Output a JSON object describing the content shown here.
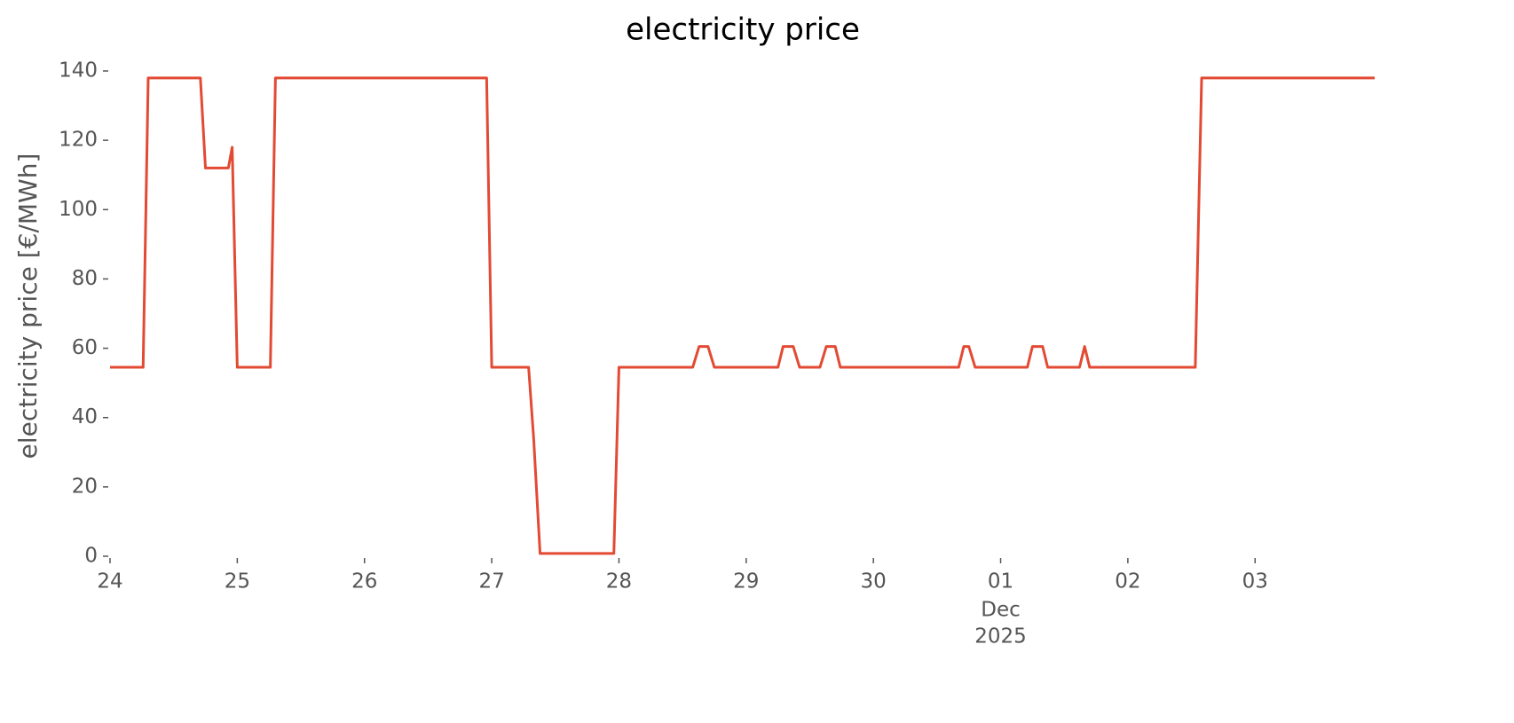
{
  "chart_data": {
    "type": "line",
    "title": "electricity price",
    "y_label": "electricity price [€/MWh]",
    "x": [
      0,
      0.26,
      0.3,
      0.71,
      0.75,
      0.93,
      0.96,
      1.0,
      1.26,
      1.3,
      2.96,
      3.0,
      3.29,
      3.33,
      3.38,
      3.96,
      4.0,
      4.58,
      4.63,
      4.7,
      4.75,
      5.25,
      5.29,
      5.37,
      5.42,
      5.58,
      5.63,
      5.7,
      5.74,
      6.67,
      6.71,
      6.75,
      6.8,
      7.21,
      7.25,
      7.33,
      7.37,
      7.62,
      7.66,
      7.7,
      8.53,
      8.58,
      9.94
    ],
    "values": [
      54.5,
      54.5,
      138,
      138,
      112,
      112,
      118,
      54.5,
      54.5,
      138,
      138,
      54.5,
      54.5,
      33.8,
      0.8,
      0.8,
      54.5,
      54.5,
      60.5,
      60.5,
      54.5,
      54.5,
      60.5,
      60.5,
      54.5,
      54.5,
      60.5,
      60.5,
      54.5,
      54.5,
      60.5,
      60.5,
      54.5,
      54.5,
      60.5,
      60.5,
      54.5,
      54.5,
      60.5,
      54.5,
      54.5,
      138,
      138
    ],
    "color": "#e24a33",
    "xlim": [
      0,
      9.94
    ],
    "xticks": [
      {
        "value": 0,
        "label": "24"
      },
      {
        "value": 1,
        "label": "25"
      },
      {
        "value": 2,
        "label": "26"
      },
      {
        "value": 3,
        "label": "27"
      },
      {
        "value": 4,
        "label": "28"
      },
      {
        "value": 5,
        "label": "29"
      },
      {
        "value": 6,
        "label": "30"
      },
      {
        "value": 7,
        "label": "01"
      },
      {
        "value": 8,
        "label": "02"
      },
      {
        "value": 9,
        "label": "03"
      }
    ],
    "x_month_label": [
      "Dec",
      "2025"
    ],
    "ylim": [
      0,
      140
    ],
    "yticks": [
      0,
      20,
      40,
      60,
      80,
      100,
      120,
      140
    ],
    "grid": false
  }
}
